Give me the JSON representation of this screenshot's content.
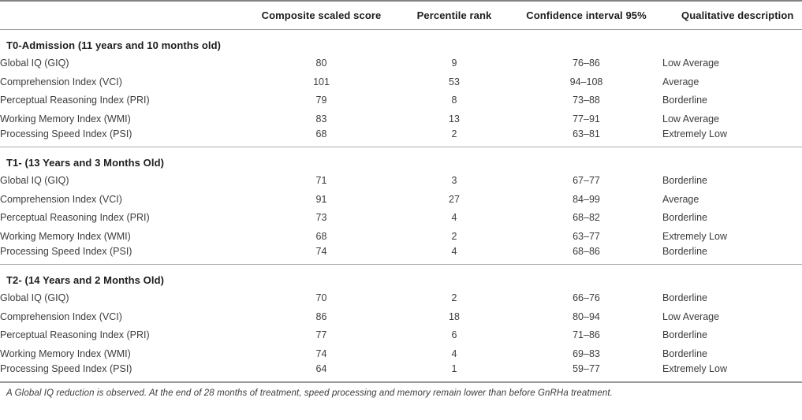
{
  "table": {
    "columns": [
      "Composite scaled score",
      "Percentile rank",
      "Confidence interval 95%",
      "Qualitative description"
    ],
    "sections": [
      {
        "title": "T0-Admission (11 years and 10 months old)",
        "rows": [
          {
            "label": "Global IQ (GIQ)",
            "score": "80",
            "percentile": "9",
            "ci": "76–86",
            "qualitative": "Low Average"
          },
          {
            "label": "Comprehension Index (VCI)",
            "score": "101",
            "percentile": "53",
            "ci": "94–108",
            "qualitative": "Average"
          },
          {
            "label": "Perceptual Reasoning Index (PRI)",
            "score": "79",
            "percentile": "8",
            "ci": "73–88",
            "qualitative": "Borderline"
          },
          {
            "label": "Working Memory Index (WMI)",
            "score": "83",
            "percentile": "13",
            "ci": "77–91",
            "qualitative": "Low Average"
          },
          {
            "label": "Processing Speed Index (PSI)",
            "score": "68",
            "percentile": "2",
            "ci": "63–81",
            "qualitative": "Extremely Low"
          }
        ]
      },
      {
        "title": "T1- (13 Years and 3 Months Old)",
        "rows": [
          {
            "label": "Global IQ (GIQ)",
            "score": "71",
            "percentile": "3",
            "ci": "67–77",
            "qualitative": "Borderline"
          },
          {
            "label": "Comprehension Index (VCI)",
            "score": "91",
            "percentile": "27",
            "ci": "84–99",
            "qualitative": "Average"
          },
          {
            "label": "Perceptual Reasoning Index (PRI)",
            "score": "73",
            "percentile": "4",
            "ci": "68–82",
            "qualitative": "Borderline"
          },
          {
            "label": "Working Memory Index (WMI)",
            "score": "68",
            "percentile": "2",
            "ci": "63–77",
            "qualitative": "Extremely Low"
          },
          {
            "label": "Processing Speed Index (PSI)",
            "score": "74",
            "percentile": "4",
            "ci": "68–86",
            "qualitative": "Borderline"
          }
        ]
      },
      {
        "title": "T2- (14 Years and 2 Months Old)",
        "rows": [
          {
            "label": "Global IQ (GIQ)",
            "score": "70",
            "percentile": "2",
            "ci": "66–76",
            "qualitative": "Borderline"
          },
          {
            "label": "Comprehension Index (VCI)",
            "score": "86",
            "percentile": "18",
            "ci": "80–94",
            "qualitative": "Low Average"
          },
          {
            "label": "Perceptual Reasoning Index (PRI)",
            "score": "77",
            "percentile": "6",
            "ci": "71–86",
            "qualitative": "Borderline"
          },
          {
            "label": "Working Memory Index (WMI)",
            "score": "74",
            "percentile": "4",
            "ci": "69–83",
            "qualitative": "Borderline"
          },
          {
            "label": "Processing Speed Index (PSI)",
            "score": "64",
            "percentile": "1",
            "ci": "59–77",
            "qualitative": "Extremely Low"
          }
        ]
      }
    ],
    "footnote": "A Global IQ reduction is observed. At the end of 28 months of treatment, speed processing and memory remain lower than before GnRHa treatment.",
    "colors": {
      "rule_dark": "#858585",
      "rule_light": "#acacac",
      "text_heading": "#1d1d1d",
      "text_body": "#3c3c3c"
    }
  }
}
